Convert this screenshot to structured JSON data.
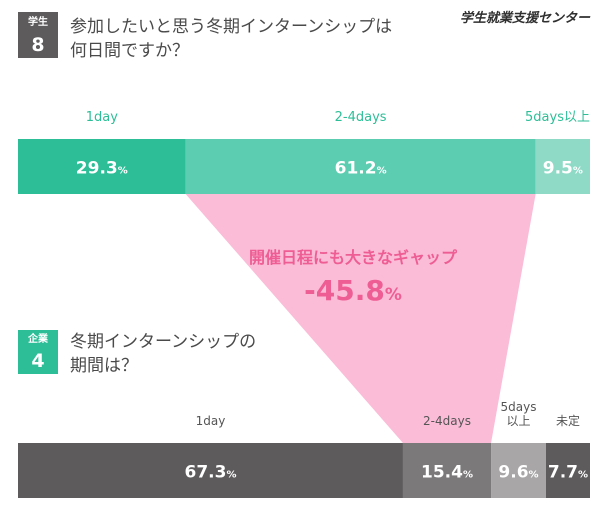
{
  "brand": "学生就業支援センター",
  "colors": {
    "green_dark": "#2dbe97",
    "green_mid": "#5ccdb0",
    "green_light": "#8fdac6",
    "pink_funnel": "#fbbcd8",
    "pink_text": "#ee5d94",
    "gray_dark": "#5e5b5c",
    "gray_mid": "#7c797a",
    "gray_light": "#a8a6a6",
    "gray_badge": "#5e5b5c",
    "green_badge": "#2dbe97"
  },
  "student": {
    "badge_label": "学生",
    "badge_num": "8",
    "question_line1": "参加したいと思う冬期インターンシップは",
    "question_line2": "何日間ですか？"
  },
  "company": {
    "badge_label": "企業",
    "badge_num": "4",
    "question_line1": "冬期インターンシップの",
    "question_line2": "期間は？"
  },
  "gap": {
    "caption": "開催日程にも大きなギャップ",
    "value": "-45.8",
    "unit": "%"
  },
  "chart_data": [
    {
      "type": "bar",
      "orientation": "horizontal-stacked",
      "group": "学生",
      "categories": [
        "1day",
        "2-4days",
        "5days以上"
      ],
      "values": [
        29.3,
        61.2,
        9.5
      ],
      "labels": [
        "29.3",
        "61.2",
        "9.5"
      ],
      "unit": "%",
      "colors": [
        "#2dbe97",
        "#5ccdb0",
        "#8fdac6"
      ]
    },
    {
      "type": "bar",
      "orientation": "horizontal-stacked",
      "group": "企業",
      "categories": [
        "1day",
        "2-4days",
        "5days\n以上",
        "未定"
      ],
      "values": [
        67.3,
        15.4,
        9.6,
        7.7
      ],
      "labels": [
        "67.3",
        "15.4",
        "9.6",
        "7.7"
      ],
      "unit": "%",
      "colors": [
        "#5e5b5c",
        "#7c797a",
        "#a8a6a6",
        "#5e5b5c"
      ]
    }
  ]
}
